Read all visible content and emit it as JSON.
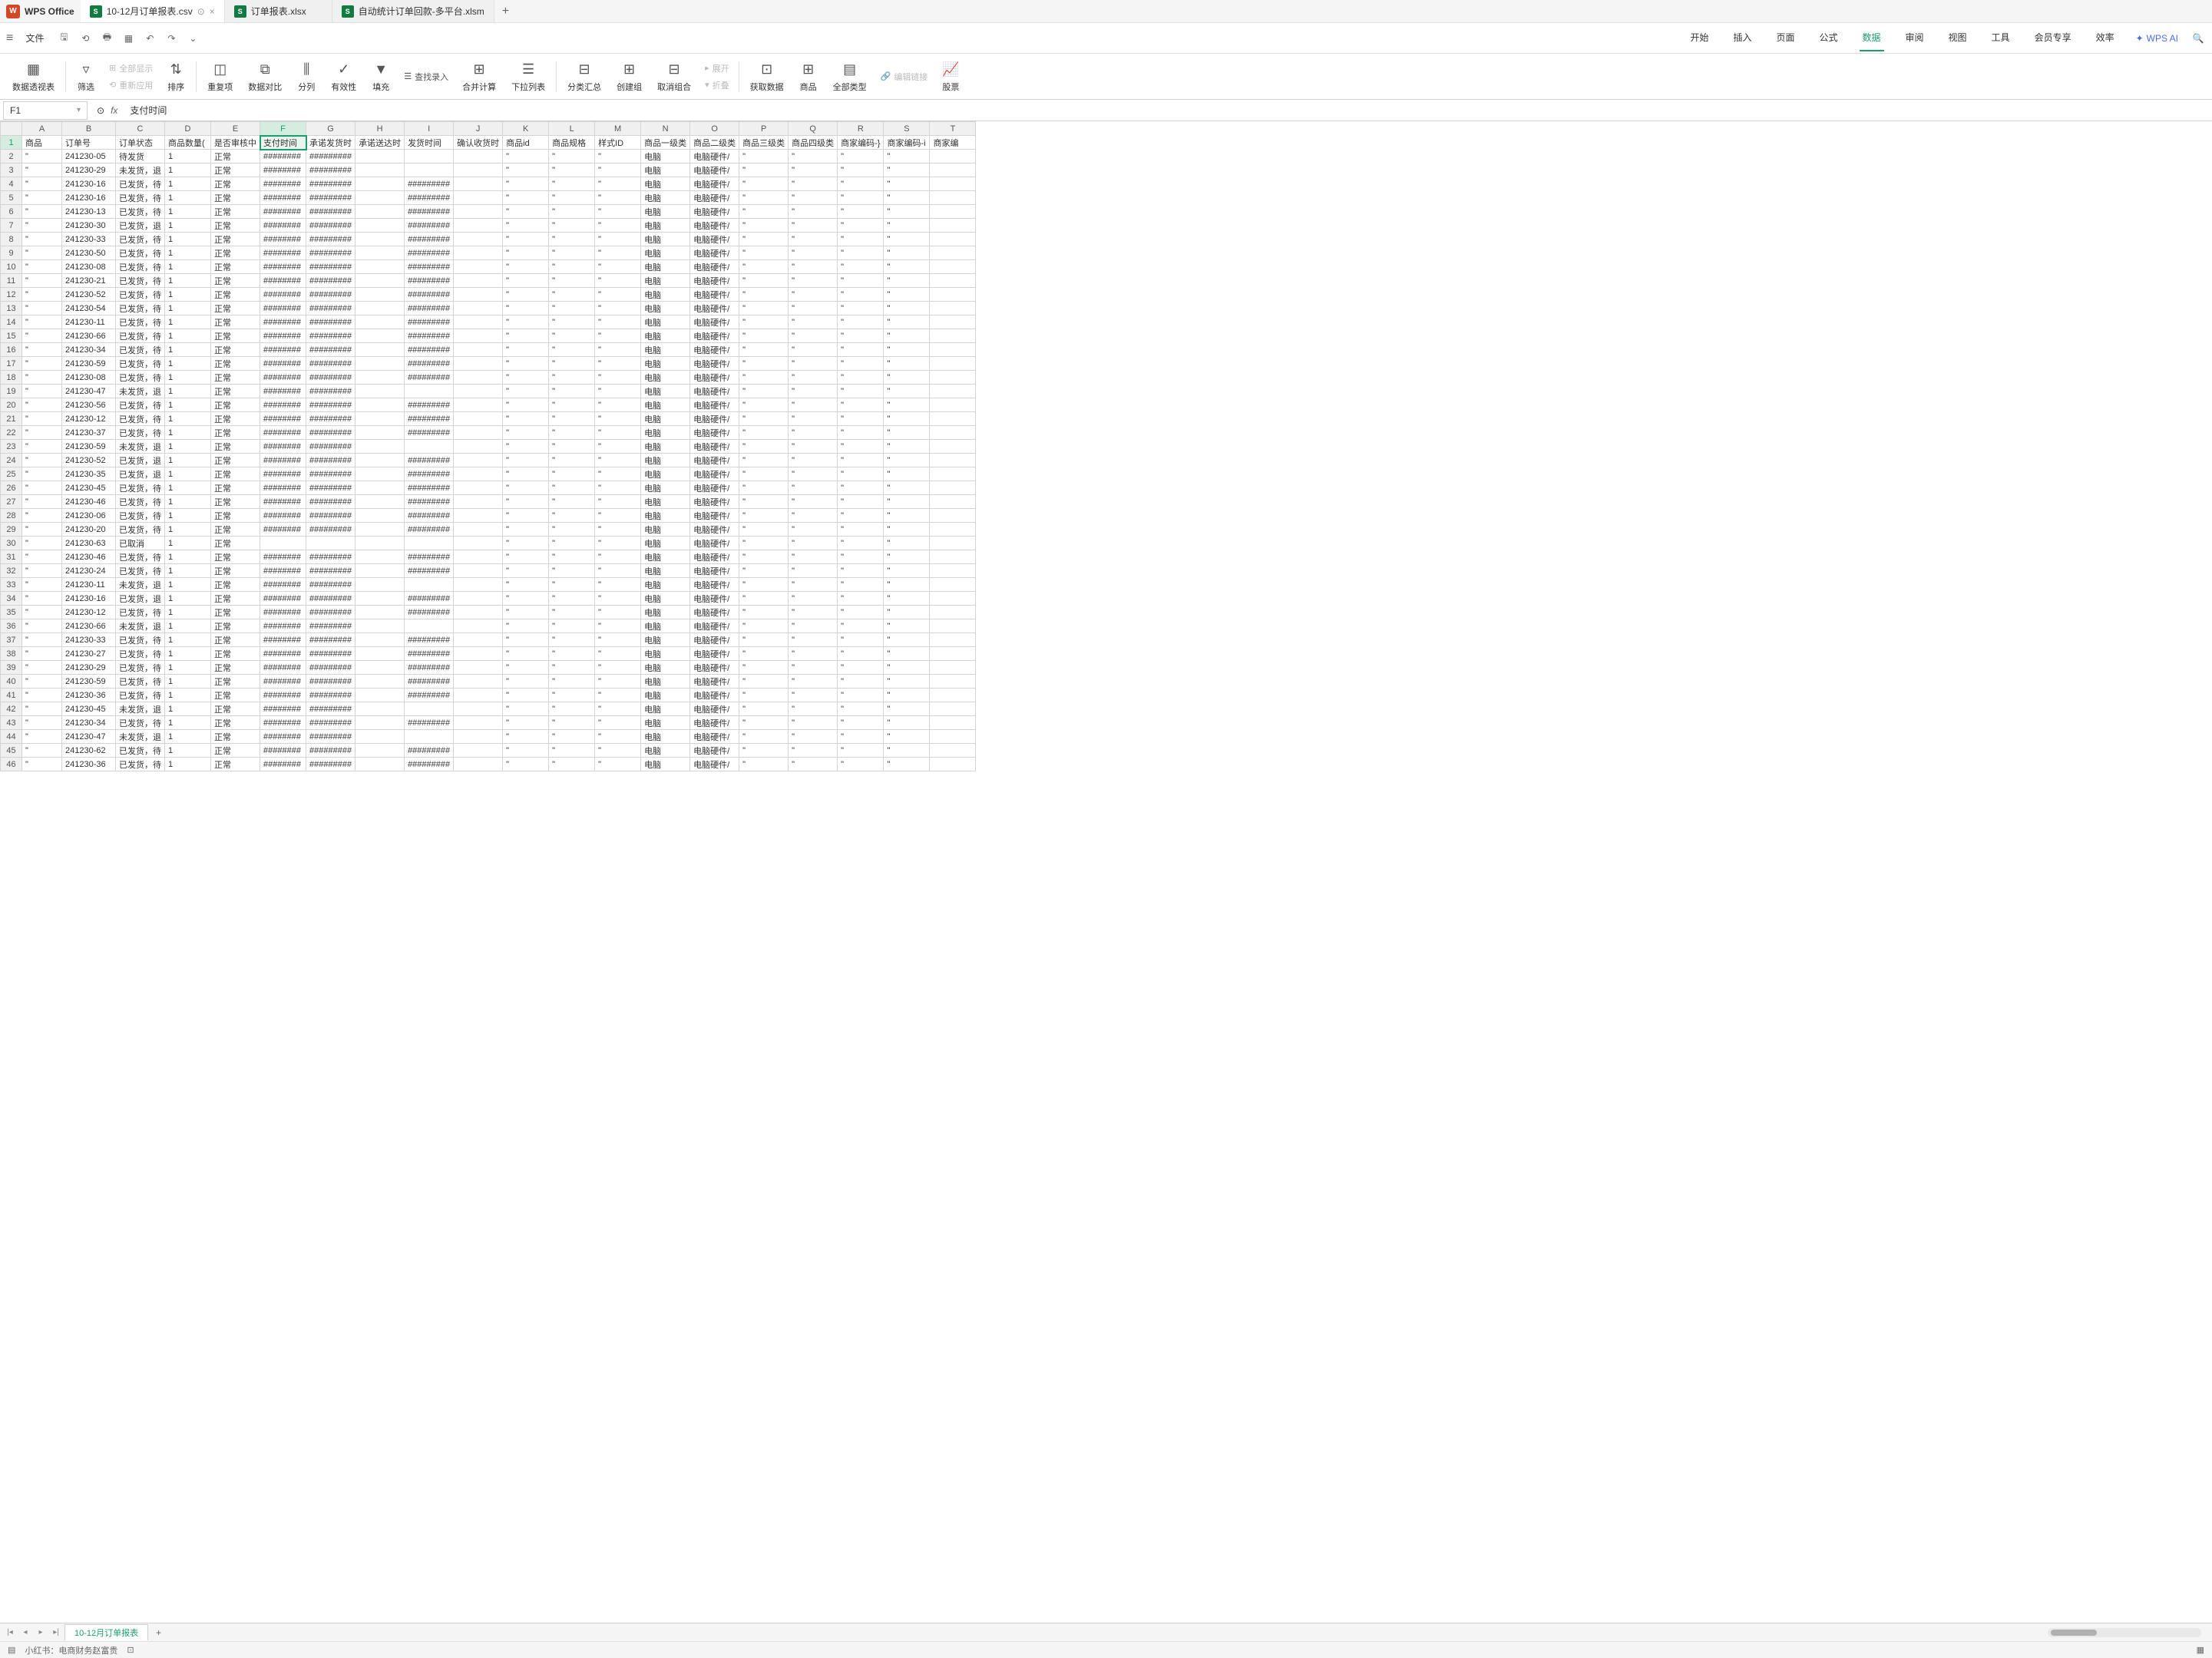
{
  "app": {
    "name": "WPS Office"
  },
  "tabs": [
    {
      "label": "10-12月订单报表.csv",
      "active": true
    },
    {
      "label": "订单报表.xlsx",
      "active": false
    },
    {
      "label": "自动统计订单回款-多平台.xlsm",
      "active": false
    }
  ],
  "file_menu": "文件",
  "menu_tabs": [
    "开始",
    "插入",
    "页面",
    "公式",
    "数据",
    "审阅",
    "视图",
    "工具",
    "会员专享",
    "效率"
  ],
  "menu_active": "数据",
  "ai_label": "WPS AI",
  "ribbon": {
    "pivot": "数据透视表",
    "filter": "筛选",
    "show_all": "全部显示",
    "reapply": "重新应用",
    "sort": "排序",
    "dedup": "重复项",
    "compare": "数据对比",
    "split": "分列",
    "validate": "有效性",
    "fill": "填充",
    "find_entry": "查找录入",
    "merge_calc": "合并计算",
    "dropdown": "下拉列表",
    "subtotal": "分类汇总",
    "group": "创建组",
    "ungroup": "取消组合",
    "expand": "展开",
    "collapse": "折叠",
    "get_data": "获取数据",
    "products": "商品",
    "all_types": "全部类型",
    "edit_link": "编辑链接",
    "stock": "股票"
  },
  "name_box": "F1",
  "formula": "支付时间",
  "columns": [
    "A",
    "B",
    "C",
    "D",
    "E",
    "F",
    "G",
    "H",
    "I",
    "J",
    "K",
    "L",
    "M",
    "N",
    "O",
    "P",
    "Q",
    "R",
    "S",
    "T"
  ],
  "selected_col": "F",
  "selected_row": 1,
  "headers": [
    "商品",
    "订单号",
    "订单状态",
    "商品数量(",
    "是否审核中",
    "支付时间",
    "承诺发货时",
    "承诺送达时",
    "发货时间",
    "确认收货时",
    "商品id",
    "商品规格",
    "样式ID",
    "商品一级类",
    "商品二级类",
    "商品三级类",
    "商品四级类",
    "商家编码-}",
    "商家编码-i",
    "商家编"
  ],
  "rows": [
    [
      "\"",
      "241230-05",
      "待发货",
      "1",
      "正常",
      "########",
      "#########",
      "",
      "",
      "",
      "\"",
      "\"",
      "\"",
      "电脑",
      "电脑硬件/",
      "\"",
      "\"",
      "\"",
      "\"",
      ""
    ],
    [
      "\"",
      "241230-29",
      "未发货，退",
      "1",
      "正常",
      "########",
      "#########",
      "",
      "",
      "",
      "\"",
      "\"",
      "\"",
      "电脑",
      "电脑硬件/",
      "\"",
      "\"",
      "\"",
      "\"",
      ""
    ],
    [
      "\"",
      "241230-16",
      "已发货，待",
      "1",
      "正常",
      "########",
      "#########",
      "",
      "#########",
      "",
      "\"",
      "\"",
      "\"",
      "电脑",
      "电脑硬件/",
      "\"",
      "\"",
      "\"",
      "\"",
      ""
    ],
    [
      "\"",
      "241230-16",
      "已发货，待",
      "1",
      "正常",
      "########",
      "#########",
      "",
      "#########",
      "",
      "\"",
      "\"",
      "\"",
      "电脑",
      "电脑硬件/",
      "\"",
      "\"",
      "\"",
      "\"",
      ""
    ],
    [
      "\"",
      "241230-13",
      "已发货，待",
      "1",
      "正常",
      "########",
      "#########",
      "",
      "#########",
      "",
      "\"",
      "\"",
      "\"",
      "电脑",
      "电脑硬件/",
      "\"",
      "\"",
      "\"",
      "\"",
      ""
    ],
    [
      "\"",
      "241230-30",
      "已发货，退",
      "1",
      "正常",
      "########",
      "#########",
      "",
      "#########",
      "",
      "\"",
      "\"",
      "\"",
      "电脑",
      "电脑硬件/",
      "\"",
      "\"",
      "\"",
      "\"",
      ""
    ],
    [
      "\"",
      "241230-33",
      "已发货，待",
      "1",
      "正常",
      "########",
      "#########",
      "",
      "#########",
      "",
      "\"",
      "\"",
      "\"",
      "电脑",
      "电脑硬件/",
      "\"",
      "\"",
      "\"",
      "\"",
      ""
    ],
    [
      "\"",
      "241230-50",
      "已发货，待",
      "1",
      "正常",
      "########",
      "#########",
      "",
      "#########",
      "",
      "\"",
      "\"",
      "\"",
      "电脑",
      "电脑硬件/",
      "\"",
      "\"",
      "\"",
      "\"",
      ""
    ],
    [
      "\"",
      "241230-08",
      "已发货，待",
      "1",
      "正常",
      "########",
      "#########",
      "",
      "#########",
      "",
      "\"",
      "\"",
      "\"",
      "电脑",
      "电脑硬件/",
      "\"",
      "\"",
      "\"",
      "\"",
      ""
    ],
    [
      "\"",
      "241230-21",
      "已发货，待",
      "1",
      "正常",
      "########",
      "#########",
      "",
      "#########",
      "",
      "\"",
      "\"",
      "\"",
      "电脑",
      "电脑硬件/",
      "\"",
      "\"",
      "\"",
      "\"",
      ""
    ],
    [
      "\"",
      "241230-52",
      "已发货，待",
      "1",
      "正常",
      "########",
      "#########",
      "",
      "#########",
      "",
      "\"",
      "\"",
      "\"",
      "电脑",
      "电脑硬件/",
      "\"",
      "\"",
      "\"",
      "\"",
      ""
    ],
    [
      "\"",
      "241230-54",
      "已发货，待",
      "1",
      "正常",
      "########",
      "#########",
      "",
      "#########",
      "",
      "\"",
      "\"",
      "\"",
      "电脑",
      "电脑硬件/",
      "\"",
      "\"",
      "\"",
      "\"",
      ""
    ],
    [
      "\"",
      "241230-11",
      "已发货，待",
      "1",
      "正常",
      "########",
      "#########",
      "",
      "#########",
      "",
      "\"",
      "\"",
      "\"",
      "电脑",
      "电脑硬件/",
      "\"",
      "\"",
      "\"",
      "\"",
      ""
    ],
    [
      "\"",
      "241230-66",
      "已发货，待",
      "1",
      "正常",
      "########",
      "#########",
      "",
      "#########",
      "",
      "\"",
      "\"",
      "\"",
      "电脑",
      "电脑硬件/",
      "\"",
      "\"",
      "\"",
      "\"",
      ""
    ],
    [
      "\"",
      "241230-34",
      "已发货，待",
      "1",
      "正常",
      "########",
      "#########",
      "",
      "#########",
      "",
      "\"",
      "\"",
      "\"",
      "电脑",
      "电脑硬件/",
      "\"",
      "\"",
      "\"",
      "\"",
      ""
    ],
    [
      "\"",
      "241230-59",
      "已发货，待",
      "1",
      "正常",
      "########",
      "#########",
      "",
      "#########",
      "",
      "\"",
      "\"",
      "\"",
      "电脑",
      "电脑硬件/",
      "\"",
      "\"",
      "\"",
      "\"",
      ""
    ],
    [
      "\"",
      "241230-08",
      "已发货，待",
      "1",
      "正常",
      "########",
      "#########",
      "",
      "#########",
      "",
      "\"",
      "\"",
      "\"",
      "电脑",
      "电脑硬件/",
      "\"",
      "\"",
      "\"",
      "\"",
      ""
    ],
    [
      "\"",
      "241230-47",
      "未发货，退",
      "1",
      "正常",
      "########",
      "#########",
      "",
      "",
      "",
      "\"",
      "\"",
      "\"",
      "电脑",
      "电脑硬件/",
      "\"",
      "\"",
      "\"",
      "\"",
      ""
    ],
    [
      "\"",
      "241230-56",
      "已发货，待",
      "1",
      "正常",
      "########",
      "#########",
      "",
      "#########",
      "",
      "\"",
      "\"",
      "\"",
      "电脑",
      "电脑硬件/",
      "\"",
      "\"",
      "\"",
      "\"",
      ""
    ],
    [
      "\"",
      "241230-12",
      "已发货，待",
      "1",
      "正常",
      "########",
      "#########",
      "",
      "#########",
      "",
      "\"",
      "\"",
      "\"",
      "电脑",
      "电脑硬件/",
      "\"",
      "\"",
      "\"",
      "\"",
      ""
    ],
    [
      "\"",
      "241230-37",
      "已发货，待",
      "1",
      "正常",
      "########",
      "#########",
      "",
      "#########",
      "",
      "\"",
      "\"",
      "\"",
      "电脑",
      "电脑硬件/",
      "\"",
      "\"",
      "\"",
      "\"",
      ""
    ],
    [
      "\"",
      "241230-59",
      "未发货，退",
      "1",
      "正常",
      "########",
      "#########",
      "",
      "",
      "",
      "\"",
      "\"",
      "\"",
      "电脑",
      "电脑硬件/",
      "\"",
      "\"",
      "\"",
      "\"",
      ""
    ],
    [
      "\"",
      "241230-52",
      "已发货，退",
      "1",
      "正常",
      "########",
      "#########",
      "",
      "#########",
      "",
      "\"",
      "\"",
      "\"",
      "电脑",
      "电脑硬件/",
      "\"",
      "\"",
      "\"",
      "\"",
      ""
    ],
    [
      "\"",
      "241230-35",
      "已发货，退",
      "1",
      "正常",
      "########",
      "#########",
      "",
      "#########",
      "",
      "\"",
      "\"",
      "\"",
      "电脑",
      "电脑硬件/",
      "\"",
      "\"",
      "\"",
      "\"",
      ""
    ],
    [
      "\"",
      "241230-45",
      "已发货，待",
      "1",
      "正常",
      "########",
      "#########",
      "",
      "#########",
      "",
      "\"",
      "\"",
      "\"",
      "电脑",
      "电脑硬件/",
      "\"",
      "\"",
      "\"",
      "\"",
      ""
    ],
    [
      "\"",
      "241230-46",
      "已发货，待",
      "1",
      "正常",
      "########",
      "#########",
      "",
      "#########",
      "",
      "\"",
      "\"",
      "\"",
      "电脑",
      "电脑硬件/",
      "\"",
      "\"",
      "\"",
      "\"",
      ""
    ],
    [
      "\"",
      "241230-06",
      "已发货，待",
      "1",
      "正常",
      "########",
      "#########",
      "",
      "#########",
      "",
      "\"",
      "\"",
      "\"",
      "电脑",
      "电脑硬件/",
      "\"",
      "\"",
      "\"",
      "\"",
      ""
    ],
    [
      "\"",
      "241230-20",
      "已发货，待",
      "1",
      "正常",
      "########",
      "#########",
      "",
      "#########",
      "",
      "\"",
      "\"",
      "\"",
      "电脑",
      "电脑硬件/",
      "\"",
      "\"",
      "\"",
      "\"",
      ""
    ],
    [
      "\"",
      "241230-63",
      "已取消",
      "1",
      "正常",
      "",
      "",
      "",
      "",
      "",
      "\"",
      "\"",
      "\"",
      "电脑",
      "电脑硬件/",
      "\"",
      "\"",
      "\"",
      "\"",
      ""
    ],
    [
      "\"",
      "241230-46",
      "已发货，待",
      "1",
      "正常",
      "########",
      "#########",
      "",
      "#########",
      "",
      "\"",
      "\"",
      "\"",
      "电脑",
      "电脑硬件/",
      "\"",
      "\"",
      "\"",
      "\"",
      ""
    ],
    [
      "\"",
      "241230-24",
      "已发货，待",
      "1",
      "正常",
      "########",
      "#########",
      "",
      "#########",
      "",
      "\"",
      "\"",
      "\"",
      "电脑",
      "电脑硬件/",
      "\"",
      "\"",
      "\"",
      "\"",
      ""
    ],
    [
      "\"",
      "241230-11",
      "未发货，退",
      "1",
      "正常",
      "########",
      "#########",
      "",
      "",
      "",
      "\"",
      "\"",
      "\"",
      "电脑",
      "电脑硬件/",
      "\"",
      "\"",
      "\"",
      "\"",
      ""
    ],
    [
      "\"",
      "241230-16",
      "已发货，退",
      "1",
      "正常",
      "########",
      "#########",
      "",
      "#########",
      "",
      "\"",
      "\"",
      "\"",
      "电脑",
      "电脑硬件/",
      "\"",
      "\"",
      "\"",
      "\"",
      ""
    ],
    [
      "\"",
      "241230-12",
      "已发货，待",
      "1",
      "正常",
      "########",
      "#########",
      "",
      "#########",
      "",
      "\"",
      "\"",
      "\"",
      "电脑",
      "电脑硬件/",
      "\"",
      "\"",
      "\"",
      "\"",
      ""
    ],
    [
      "\"",
      "241230-66",
      "未发货，退",
      "1",
      "正常",
      "########",
      "#########",
      "",
      "",
      "",
      "\"",
      "\"",
      "\"",
      "电脑",
      "电脑硬件/",
      "\"",
      "\"",
      "\"",
      "\"",
      ""
    ],
    [
      "\"",
      "241230-33",
      "已发货，待",
      "1",
      "正常",
      "########",
      "#########",
      "",
      "#########",
      "",
      "\"",
      "\"",
      "\"",
      "电脑",
      "电脑硬件/",
      "\"",
      "\"",
      "\"",
      "\"",
      ""
    ],
    [
      "\"",
      "241230-27",
      "已发货，待",
      "1",
      "正常",
      "########",
      "#########",
      "",
      "#########",
      "",
      "\"",
      "\"",
      "\"",
      "电脑",
      "电脑硬件/",
      "\"",
      "\"",
      "\"",
      "\"",
      ""
    ],
    [
      "\"",
      "241230-29",
      "已发货，待",
      "1",
      "正常",
      "########",
      "#########",
      "",
      "#########",
      "",
      "\"",
      "\"",
      "\"",
      "电脑",
      "电脑硬件/",
      "\"",
      "\"",
      "\"",
      "\"",
      ""
    ],
    [
      "\"",
      "241230-59",
      "已发货，待",
      "1",
      "正常",
      "########",
      "#########",
      "",
      "#########",
      "",
      "\"",
      "\"",
      "\"",
      "电脑",
      "电脑硬件/",
      "\"",
      "\"",
      "\"",
      "\"",
      ""
    ],
    [
      "\"",
      "241230-36",
      "已发货，待",
      "1",
      "正常",
      "########",
      "#########",
      "",
      "#########",
      "",
      "\"",
      "\"",
      "\"",
      "电脑",
      "电脑硬件/",
      "\"",
      "\"",
      "\"",
      "\"",
      ""
    ],
    [
      "\"",
      "241230-45",
      "未发货，退",
      "1",
      "正常",
      "########",
      "#########",
      "",
      "",
      "",
      "\"",
      "\"",
      "\"",
      "电脑",
      "电脑硬件/",
      "\"",
      "\"",
      "\"",
      "\"",
      ""
    ],
    [
      "\"",
      "241230-34",
      "已发货，待",
      "1",
      "正常",
      "########",
      "#########",
      "",
      "#########",
      "",
      "\"",
      "\"",
      "\"",
      "电脑",
      "电脑硬件/",
      "\"",
      "\"",
      "\"",
      "\"",
      ""
    ],
    [
      "\"",
      "241230-47",
      "未发货，退",
      "1",
      "正常",
      "########",
      "#########",
      "",
      "",
      "",
      "\"",
      "\"",
      "\"",
      "电脑",
      "电脑硬件/",
      "\"",
      "\"",
      "\"",
      "\"",
      ""
    ],
    [
      "\"",
      "241230-62",
      "已发货，待",
      "1",
      "正常",
      "########",
      "#########",
      "",
      "#########",
      "",
      "\"",
      "\"",
      "\"",
      "电脑",
      "电脑硬件/",
      "\"",
      "\"",
      "\"",
      "\"",
      ""
    ],
    [
      "\"",
      "241230-36",
      "已发货，待",
      "1",
      "正常",
      "########",
      "#########",
      "",
      "#########",
      "",
      "\"",
      "\"",
      "\"",
      "电脑",
      "电脑硬件/",
      "\"",
      "\"",
      "\"",
      "\"",
      ""
    ]
  ],
  "sheet_tab": "10-12月订单报表",
  "status": {
    "author": "小红书：电商财务赵富贵"
  }
}
